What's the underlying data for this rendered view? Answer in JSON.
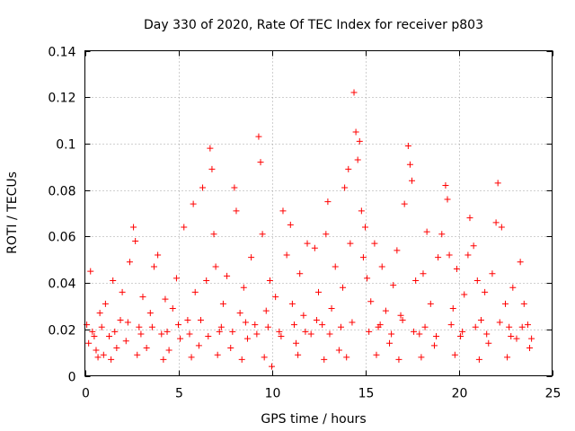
{
  "chart_data": {
    "type": "scatter",
    "title": "Day 330 of 2020, Rate Of TEC Index for receiver p803",
    "xlabel": "GPS time / hours",
    "ylabel": "ROTI / TECUs",
    "xlim": [
      0,
      25
    ],
    "ylim": [
      0,
      0.14
    ],
    "xticks": [
      0,
      5,
      10,
      15,
      20,
      25
    ],
    "xtick_labels": [
      "0",
      "5",
      "10",
      "15",
      "20",
      "25"
    ],
    "yticks": [
      0,
      0.02,
      0.04,
      0.06,
      0.08,
      0.1,
      0.12,
      0.14
    ],
    "ytick_labels": [
      "0",
      "0.02",
      "0.04",
      "0.06",
      "0.08",
      "0.1",
      "0.12",
      "0.14"
    ],
    "grid": true,
    "marker": "+",
    "series": [
      {
        "name": "ROTI",
        "color": "#ff0000",
        "points": [
          [
            0.1,
            0.022
          ],
          [
            0.2,
            0.014
          ],
          [
            0.3,
            0.045
          ],
          [
            0.4,
            0.019
          ],
          [
            0.6,
            0.011
          ],
          [
            0.8,
            0.027
          ],
          [
            1.0,
            0.009
          ],
          [
            1.1,
            0.031
          ],
          [
            1.3,
            0.017
          ],
          [
            1.5,
            0.041
          ],
          [
            1.7,
            0.012
          ],
          [
            1.9,
            0.024
          ],
          [
            2.0,
            0.036
          ],
          [
            2.2,
            0.015
          ],
          [
            2.4,
            0.049
          ],
          [
            2.6,
            0.064
          ],
          [
            2.7,
            0.058
          ],
          [
            2.9,
            0.021
          ],
          [
            3.1,
            0.034
          ],
          [
            3.3,
            0.012
          ],
          [
            3.5,
            0.027
          ],
          [
            3.7,
            0.047
          ],
          [
            3.9,
            0.052
          ],
          [
            4.1,
            0.018
          ],
          [
            4.3,
            0.033
          ],
          [
            4.5,
            0.011
          ],
          [
            4.7,
            0.029
          ],
          [
            4.9,
            0.042
          ],
          [
            5.1,
            0.016
          ],
          [
            5.3,
            0.064
          ],
          [
            5.5,
            0.024
          ],
          [
            5.8,
            0.074
          ],
          [
            5.9,
            0.036
          ],
          [
            6.1,
            0.013
          ],
          [
            6.3,
            0.081
          ],
          [
            6.5,
            0.041
          ],
          [
            6.7,
            0.098
          ],
          [
            6.8,
            0.089
          ],
          [
            6.9,
            0.061
          ],
          [
            7.0,
            0.047
          ],
          [
            7.2,
            0.019
          ],
          [
            7.4,
            0.031
          ],
          [
            7.6,
            0.043
          ],
          [
            7.8,
            0.012
          ],
          [
            8.0,
            0.081
          ],
          [
            8.1,
            0.071
          ],
          [
            8.3,
            0.027
          ],
          [
            8.5,
            0.038
          ],
          [
            8.7,
            0.016
          ],
          [
            8.9,
            0.051
          ],
          [
            9.1,
            0.022
          ],
          [
            9.3,
            0.103
          ],
          [
            9.4,
            0.092
          ],
          [
            9.5,
            0.061
          ],
          [
            9.7,
            0.028
          ],
          [
            9.9,
            0.041
          ],
          [
            10.0,
            0.004
          ],
          [
            10.2,
            0.034
          ],
          [
            10.4,
            0.019
          ],
          [
            10.6,
            0.071
          ],
          [
            10.8,
            0.052
          ],
          [
            11.0,
            0.065
          ],
          [
            11.1,
            0.031
          ],
          [
            11.3,
            0.014
          ],
          [
            11.5,
            0.044
          ],
          [
            11.7,
            0.026
          ],
          [
            11.9,
            0.057
          ],
          [
            12.1,
            0.018
          ],
          [
            12.3,
            0.055
          ],
          [
            12.5,
            0.036
          ],
          [
            12.7,
            0.022
          ],
          [
            12.9,
            0.061
          ],
          [
            13.0,
            0.075
          ],
          [
            13.2,
            0.029
          ],
          [
            13.4,
            0.047
          ],
          [
            13.6,
            0.011
          ],
          [
            13.8,
            0.038
          ],
          [
            13.9,
            0.081
          ],
          [
            14.1,
            0.089
          ],
          [
            14.2,
            0.057
          ],
          [
            14.4,
            0.122
          ],
          [
            14.5,
            0.105
          ],
          [
            14.6,
            0.093
          ],
          [
            14.7,
            0.101
          ],
          [
            14.8,
            0.071
          ],
          [
            14.9,
            0.051
          ],
          [
            15.0,
            0.064
          ],
          [
            15.1,
            0.042
          ],
          [
            15.3,
            0.032
          ],
          [
            15.5,
            0.057
          ],
          [
            15.7,
            0.021
          ],
          [
            15.9,
            0.047
          ],
          [
            16.1,
            0.028
          ],
          [
            16.3,
            0.014
          ],
          [
            16.5,
            0.039
          ],
          [
            16.7,
            0.054
          ],
          [
            16.9,
            0.026
          ],
          [
            17.1,
            0.074
          ],
          [
            17.3,
            0.099
          ],
          [
            17.4,
            0.091
          ],
          [
            17.5,
            0.084
          ],
          [
            17.7,
            0.041
          ],
          [
            17.9,
            0.018
          ],
          [
            18.1,
            0.044
          ],
          [
            18.3,
            0.062
          ],
          [
            18.5,
            0.031
          ],
          [
            18.7,
            0.013
          ],
          [
            18.9,
            0.051
          ],
          [
            19.1,
            0.061
          ],
          [
            19.3,
            0.082
          ],
          [
            19.4,
            0.076
          ],
          [
            19.5,
            0.052
          ],
          [
            19.7,
            0.029
          ],
          [
            19.9,
            0.046
          ],
          [
            20.1,
            0.017
          ],
          [
            20.3,
            0.035
          ],
          [
            20.5,
            0.052
          ],
          [
            20.6,
            0.068
          ],
          [
            20.8,
            0.056
          ],
          [
            21.0,
            0.041
          ],
          [
            21.2,
            0.024
          ],
          [
            21.4,
            0.036
          ],
          [
            21.6,
            0.014
          ],
          [
            21.8,
            0.044
          ],
          [
            22.0,
            0.066
          ],
          [
            22.1,
            0.083
          ],
          [
            22.3,
            0.064
          ],
          [
            22.5,
            0.031
          ],
          [
            22.7,
            0.021
          ],
          [
            22.9,
            0.038
          ],
          [
            23.1,
            0.016
          ],
          [
            23.3,
            0.049
          ],
          [
            23.5,
            0.031
          ],
          [
            23.7,
            0.022
          ],
          [
            23.8,
            0.012
          ],
          [
            0.5,
            0.017
          ],
          [
            0.9,
            0.021
          ],
          [
            1.6,
            0.019
          ],
          [
            2.3,
            0.023
          ],
          [
            3.0,
            0.018
          ],
          [
            3.6,
            0.021
          ],
          [
            4.4,
            0.019
          ],
          [
            5.0,
            0.022
          ],
          [
            5.6,
            0.018
          ],
          [
            6.2,
            0.024
          ],
          [
            6.6,
            0.017
          ],
          [
            7.3,
            0.021
          ],
          [
            7.9,
            0.019
          ],
          [
            8.6,
            0.023
          ],
          [
            9.2,
            0.018
          ],
          [
            9.8,
            0.021
          ],
          [
            10.5,
            0.017
          ],
          [
            11.2,
            0.022
          ],
          [
            11.8,
            0.019
          ],
          [
            12.4,
            0.024
          ],
          [
            13.1,
            0.018
          ],
          [
            13.7,
            0.021
          ],
          [
            14.3,
            0.023
          ],
          [
            15.2,
            0.019
          ],
          [
            15.8,
            0.022
          ],
          [
            16.4,
            0.018
          ],
          [
            17.0,
            0.024
          ],
          [
            17.6,
            0.019
          ],
          [
            18.2,
            0.021
          ],
          [
            18.8,
            0.017
          ],
          [
            19.6,
            0.022
          ],
          [
            20.2,
            0.019
          ],
          [
            20.9,
            0.021
          ],
          [
            21.5,
            0.018
          ],
          [
            22.2,
            0.023
          ],
          [
            22.8,
            0.017
          ],
          [
            23.4,
            0.021
          ],
          [
            23.9,
            0.016
          ],
          [
            0.7,
            0.008
          ],
          [
            1.4,
            0.007
          ],
          [
            2.8,
            0.009
          ],
          [
            4.2,
            0.007
          ],
          [
            5.7,
            0.008
          ],
          [
            7.1,
            0.009
          ],
          [
            8.4,
            0.007
          ],
          [
            9.6,
            0.008
          ],
          [
            11.4,
            0.009
          ],
          [
            12.8,
            0.007
          ],
          [
            14.0,
            0.008
          ],
          [
            15.6,
            0.009
          ],
          [
            16.8,
            0.007
          ],
          [
            18.0,
            0.008
          ],
          [
            19.8,
            0.009
          ],
          [
            21.1,
            0.007
          ],
          [
            22.6,
            0.008
          ]
        ]
      }
    ]
  }
}
